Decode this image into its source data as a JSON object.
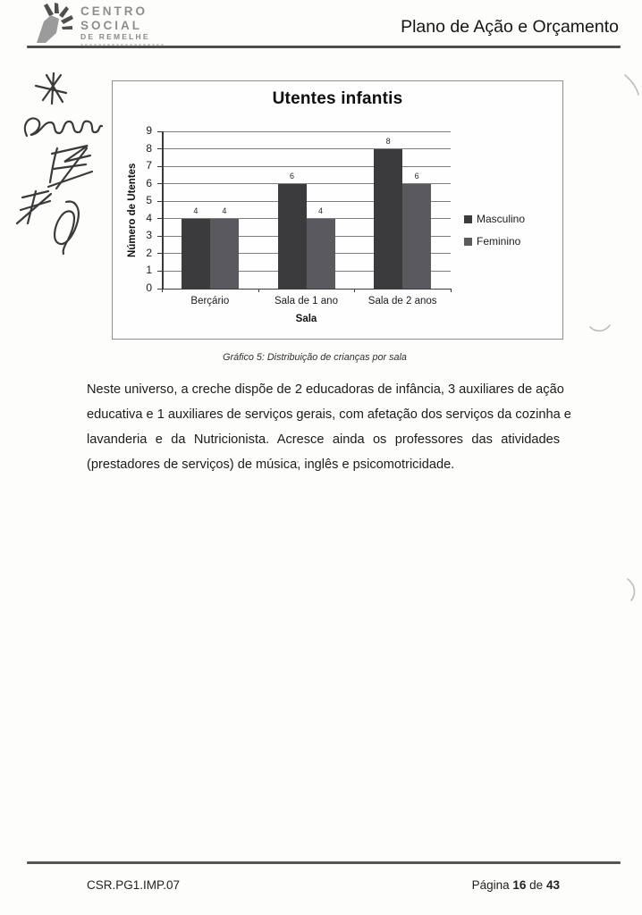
{
  "header": {
    "logo": {
      "icon": "hand-logo-icon",
      "line1": "CENTRO",
      "line2": "SOCIAL",
      "line3": "DE REMELHE"
    },
    "title": "Plano de Ação e Orçamento"
  },
  "chart_data": {
    "type": "bar",
    "title": "Utentes infantis",
    "categories": [
      "Berçário",
      "Sala de 1 ano",
      "Sala de 2 anos"
    ],
    "series": [
      {
        "name": "Masculino",
        "values": [
          4,
          6,
          8
        ],
        "color": "#3b3b3e"
      },
      {
        "name": "Feminino",
        "values": [
          4,
          4,
          6
        ],
        "color": "#5a5a5e"
      }
    ],
    "xlabel": "Sala",
    "ylabel": "Número de Utentes",
    "ylim": [
      0,
      9
    ],
    "ytick_step": 1,
    "grid": true,
    "legend_position": "right",
    "data_labels": true
  },
  "caption": "Gráfico 5: Distribuição de crianças por sala",
  "paragraph_lines": [
    "Neste universo, a creche dispõe de 2 educadoras de infância, 3 auxiliares de ação",
    "educativa e 1 auxiliares de serviços gerais, com afetação dos serviços da cozinha e",
    "lavanderia e da Nutricionista. Acresce ainda os professores das atividades",
    "(prestadores de serviços) de música, inglês e psicomotricidade."
  ],
  "footer": {
    "doc_code": "CSR.PG1.IMP.07",
    "page_label_prefix": "Página",
    "page_number": "16",
    "page_separator": "de",
    "page_total": "43"
  }
}
